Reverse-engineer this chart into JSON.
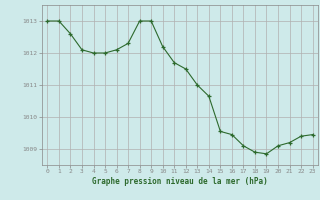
{
  "x": [
    0,
    1,
    2,
    3,
    4,
    5,
    6,
    7,
    8,
    9,
    10,
    11,
    12,
    13,
    14,
    15,
    16,
    17,
    18,
    19,
    20,
    21,
    22,
    23
  ],
  "y": [
    1013.0,
    1013.0,
    1012.6,
    1012.1,
    1012.0,
    1012.0,
    1012.1,
    1012.3,
    1013.0,
    1013.0,
    1012.2,
    1011.7,
    1011.5,
    1011.0,
    1010.65,
    1009.55,
    1009.45,
    1009.1,
    1008.9,
    1008.85,
    1009.1,
    1009.2,
    1009.4,
    1009.45
  ],
  "xlabel": "Graphe pression niveau de la mer (hPa)",
  "xlim": [
    -0.5,
    23.5
  ],
  "ylim": [
    1008.5,
    1013.5
  ],
  "yticks": [
    1009,
    1010,
    1011,
    1012,
    1013
  ],
  "xticks": [
    0,
    1,
    2,
    3,
    4,
    5,
    6,
    7,
    8,
    9,
    10,
    11,
    12,
    13,
    14,
    15,
    16,
    17,
    18,
    19,
    20,
    21,
    22,
    23
  ],
  "line_color": "#2d6a2d",
  "marker": "+",
  "bg_color": "#ceeaea",
  "grid_color": "#b0b0b0",
  "text_color": "#2d6a2d",
  "axis_color": "#888888",
  "label_fontsize": 4.5,
  "xlabel_fontsize": 5.5
}
